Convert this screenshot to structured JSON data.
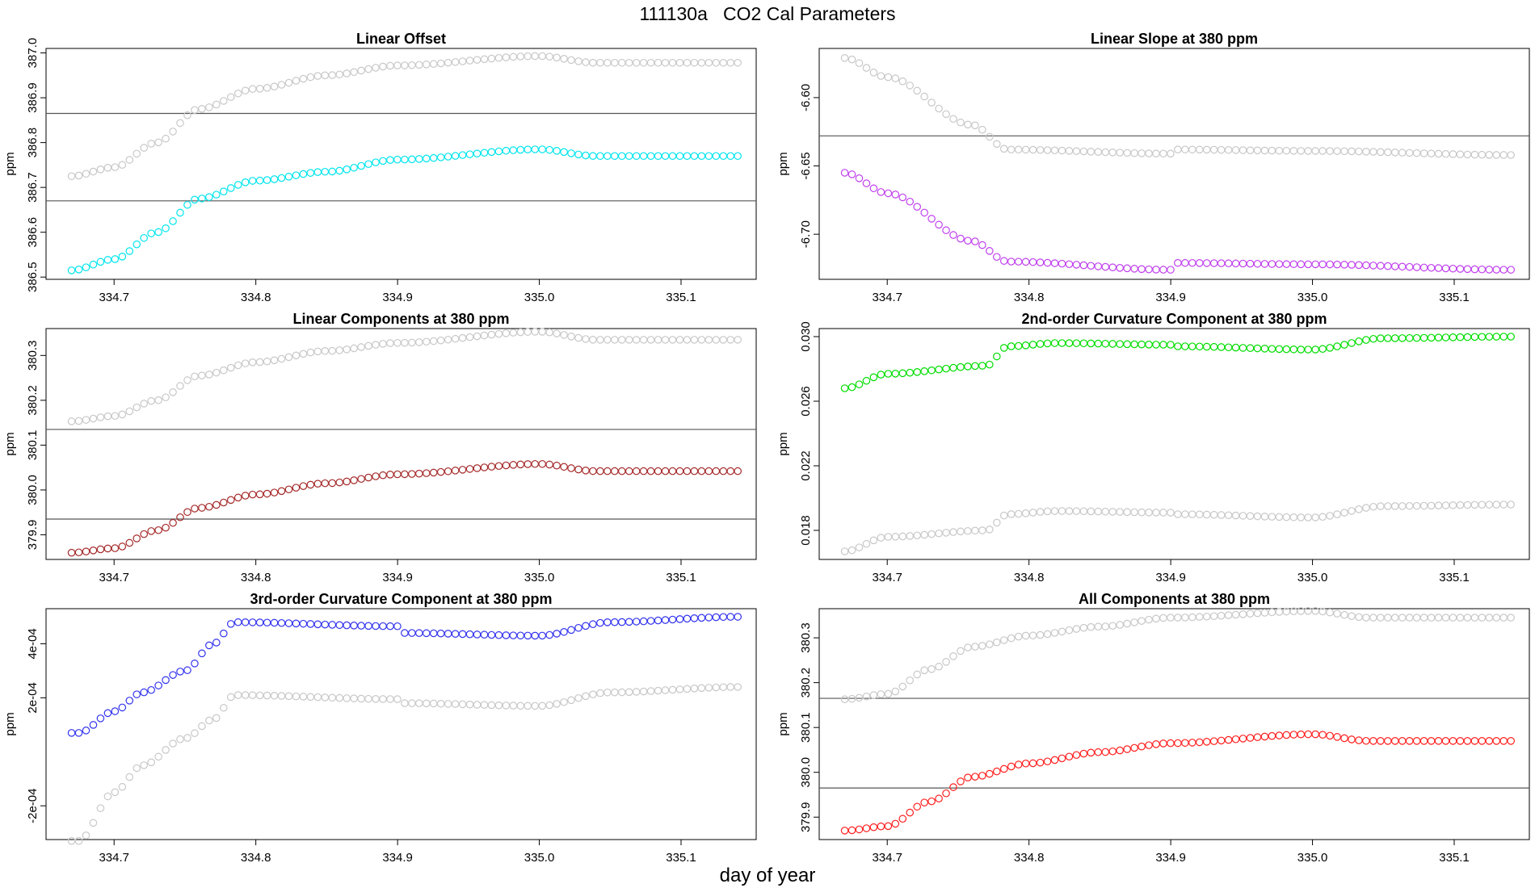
{
  "page": {
    "title": "111130a   CO2 Cal Parameters",
    "xlabel": "day of year"
  },
  "colors": {
    "gray": "#c8c8c8",
    "frame": "#000000",
    "hline": "#555555"
  },
  "chart_data": [
    {
      "type": "scatter",
      "title": "Linear Offset",
      "ylabel": "ppm",
      "xlim": [
        334.652,
        335.153
      ],
      "ylim": [
        386.495,
        387.01
      ],
      "xticks": [
        334.7,
        334.8,
        334.9,
        335.0,
        335.1
      ],
      "xtick_labels": [
        "334.7",
        "334.8",
        "334.9",
        "335.0",
        "335.1"
      ],
      "yticks": [
        386.5,
        386.6,
        386.7,
        386.8,
        386.9,
        387.0
      ],
      "ytick_labels": [
        "386.5",
        "386.6",
        "386.7",
        "386.8",
        "386.9",
        "387.0"
      ],
      "hlines": [
        386.67,
        386.865
      ],
      "x_range": [
        334.67,
        335.14
      ],
      "n_points": 93,
      "series": [
        {
          "name": "gray",
          "color": "#c8c8c8",
          "knots": [
            [
              334.67,
              386.725
            ],
            [
              334.7,
              386.745
            ],
            [
              334.73,
              386.8
            ],
            [
              334.76,
              386.875
            ],
            [
              334.8,
              386.92
            ],
            [
              334.85,
              386.95
            ],
            [
              334.9,
              386.972
            ],
            [
              335.0,
              386.993
            ],
            [
              335.04,
              386.978
            ],
            [
              335.14,
              386.978
            ]
          ]
        },
        {
          "name": "main",
          "color": "#00e5ee",
          "knots": [
            [
              334.67,
              386.515
            ],
            [
              334.7,
              386.54
            ],
            [
              334.73,
              386.6
            ],
            [
              334.76,
              386.675
            ],
            [
              334.8,
              386.715
            ],
            [
              334.85,
              386.735
            ],
            [
              334.9,
              386.762
            ],
            [
              335.0,
              386.785
            ],
            [
              335.04,
              386.77
            ],
            [
              335.14,
              386.77
            ]
          ]
        }
      ]
    },
    {
      "type": "scatter",
      "title": "Linear Slope at 380 ppm",
      "ylabel": "ppm",
      "xlim": [
        334.652,
        335.153
      ],
      "ylim": [
        -6.733,
        -6.564
      ],
      "xticks": [
        334.7,
        334.8,
        334.9,
        335.0,
        335.1
      ],
      "xtick_labels": [
        "334.7",
        "334.8",
        "334.9",
        "335.0",
        "335.1"
      ],
      "yticks": [
        -6.6,
        -6.65,
        -6.7
      ],
      "ytick_labels": [
        "-6.60",
        "-6.65",
        "-6.70"
      ],
      "hlines": [
        -6.628
      ],
      "x_range": [
        334.67,
        335.14
      ],
      "n_points": 93,
      "series": [
        {
          "name": "gray",
          "color": "#c8c8c8",
          "knots": [
            [
              334.67,
              -6.571
            ],
            [
              334.7,
              -6.585
            ],
            [
              334.76,
              -6.62
            ],
            [
              334.785,
              -6.638
            ],
            [
              334.9,
              -6.641
            ],
            [
              334.905,
              -6.638
            ],
            [
              335.0,
              -6.639
            ],
            [
              335.14,
              -6.642
            ]
          ]
        },
        {
          "name": "main",
          "color": "#c040ee",
          "knots": [
            [
              334.67,
              -6.655
            ],
            [
              334.7,
              -6.67
            ],
            [
              334.76,
              -6.705
            ],
            [
              334.785,
              -6.72
            ],
            [
              334.9,
              -6.726
            ],
            [
              334.905,
              -6.721
            ],
            [
              335.0,
              -6.722
            ],
            [
              335.14,
              -6.726
            ]
          ]
        }
      ]
    },
    {
      "type": "scatter",
      "title": "Linear Components at 380 ppm",
      "ylabel": "ppm",
      "xlim": [
        334.652,
        335.153
      ],
      "ylim": [
        379.845,
        380.36
      ],
      "xticks": [
        334.7,
        334.8,
        334.9,
        335.0,
        335.1
      ],
      "xtick_labels": [
        "334.7",
        "334.8",
        "334.9",
        "335.0",
        "335.1"
      ],
      "yticks": [
        379.9,
        380.0,
        380.1,
        380.2,
        380.3
      ],
      "ytick_labels": [
        "379.9",
        "380.0",
        "380.1",
        "380.2",
        "380.3"
      ],
      "hlines": [
        379.935,
        380.135
      ],
      "x_range": [
        334.67,
        335.14
      ],
      "n_points": 93,
      "series": [
        {
          "name": "gray",
          "color": "#c8c8c8",
          "knots": [
            [
              334.67,
              380.153
            ],
            [
              334.7,
              380.165
            ],
            [
              334.73,
              380.2
            ],
            [
              334.76,
              380.255
            ],
            [
              334.8,
              380.285
            ],
            [
              334.85,
              380.31
            ],
            [
              334.9,
              380.328
            ],
            [
              335.0,
              380.353
            ],
            [
              335.04,
              380.335
            ],
            [
              335.14,
              380.335
            ]
          ]
        },
        {
          "name": "main",
          "color": "#a52a2a",
          "knots": [
            [
              334.67,
              379.86
            ],
            [
              334.7,
              379.87
            ],
            [
              334.73,
              379.91
            ],
            [
              334.76,
              379.96
            ],
            [
              334.8,
              379.99
            ],
            [
              334.85,
              380.015
            ],
            [
              334.9,
              380.035
            ],
            [
              335.0,
              380.058
            ],
            [
              335.04,
              380.042
            ],
            [
              335.14,
              380.042
            ]
          ]
        }
      ]
    },
    {
      "type": "scatter",
      "title": "2nd-order Curvature Component at 380 ppm",
      "ylabel": "ppm",
      "xlim": [
        334.652,
        335.153
      ],
      "ylim": [
        0.0162,
        0.0305
      ],
      "xticks": [
        334.7,
        334.8,
        334.9,
        335.0,
        335.1
      ],
      "xtick_labels": [
        "334.7",
        "334.8",
        "334.9",
        "335.0",
        "335.1"
      ],
      "yticks": [
        0.018,
        0.022,
        0.026,
        0.03
      ],
      "ytick_labels": [
        "0.018",
        "0.022",
        "0.026",
        "0.030"
      ],
      "hlines": [],
      "x_range": [
        334.67,
        335.14
      ],
      "n_points": 93,
      "series": [
        {
          "name": "gray",
          "color": "#c8c8c8",
          "knots": [
            [
              334.67,
              0.0167
            ],
            [
              334.7,
              0.0176
            ],
            [
              334.77,
              0.018
            ],
            [
              334.785,
              0.019
            ],
            [
              334.82,
              0.0192
            ],
            [
              334.9,
              0.0191
            ],
            [
              334.905,
              0.019
            ],
            [
              335.0,
              0.0188
            ],
            [
              335.05,
              0.0195
            ],
            [
              335.14,
              0.0196
            ]
          ]
        },
        {
          "name": "main",
          "color": "#00dd00",
          "knots": [
            [
              334.67,
              0.0268
            ],
            [
              334.7,
              0.0277
            ],
            [
              334.77,
              0.0282
            ],
            [
              334.785,
              0.0294
            ],
            [
              334.82,
              0.0296
            ],
            [
              334.9,
              0.0295
            ],
            [
              334.905,
              0.0294
            ],
            [
              335.0,
              0.0292
            ],
            [
              335.05,
              0.0299
            ],
            [
              335.14,
              0.03
            ]
          ]
        }
      ]
    },
    {
      "type": "scatter",
      "title": "3rd-order Curvature Component at 380 ppm",
      "ylabel": "ppm",
      "xlim": [
        334.652,
        335.153
      ],
      "ylim": [
        -0.000325,
        0.00053
      ],
      "xticks": [
        334.7,
        334.8,
        334.9,
        335.0,
        335.1
      ],
      "xtick_labels": [
        "334.7",
        "334.8",
        "334.9",
        "335.0",
        "335.1"
      ],
      "yticks": [
        -0.0002,
        0.0002,
        0.0004
      ],
      "ytick_labels": [
        "-2e-04",
        "2e-04",
        "4e-04"
      ],
      "hlines": [],
      "x_range": [
        334.67,
        335.14
      ],
      "n_points": 93,
      "series": [
        {
          "name": "gray",
          "color": "#c8c8c8",
          "knots": [
            [
              334.67,
              -0.00033
            ],
            [
              334.675,
              -0.00033
            ],
            [
              334.7,
              -0.00015
            ],
            [
              334.72,
              -5e-05
            ],
            [
              334.75,
              5e-05
            ],
            [
              334.77,
              0.00012
            ],
            [
              334.785,
              0.00021
            ],
            [
              334.9,
              0.000195
            ],
            [
              334.905,
              0.00018
            ],
            [
              335.0,
              0.00017
            ],
            [
              335.05,
              0.00022
            ],
            [
              335.14,
              0.00024
            ]
          ]
        },
        {
          "name": "main",
          "color": "#3333ee",
          "knots": [
            [
              334.67,
              7e-05
            ],
            [
              334.675,
              7e-05
            ],
            [
              334.7,
              0.00015
            ],
            [
              334.72,
              0.00022
            ],
            [
              334.75,
              0.0003
            ],
            [
              334.77,
              0.0004
            ],
            [
              334.785,
              0.00048
            ],
            [
              334.9,
              0.000465
            ],
            [
              334.905,
              0.00044
            ],
            [
              335.0,
              0.00043
            ],
            [
              335.05,
              0.00048
            ],
            [
              335.14,
              0.0005
            ]
          ]
        }
      ]
    },
    {
      "type": "scatter",
      "title": "All Components at 380 ppm",
      "ylabel": "ppm",
      "xlim": [
        334.652,
        335.153
      ],
      "ylim": [
        379.85,
        380.365
      ],
      "xticks": [
        334.7,
        334.8,
        334.9,
        335.0,
        335.1
      ],
      "xtick_labels": [
        "334.7",
        "334.8",
        "334.9",
        "335.0",
        "335.1"
      ],
      "yticks": [
        379.9,
        380.0,
        380.1,
        380.2,
        380.3
      ],
      "ytick_labels": [
        "379.9",
        "380.0",
        "380.1",
        "380.2",
        "380.3"
      ],
      "hlines": [
        379.965,
        380.165
      ],
      "x_range": [
        334.67,
        335.14
      ],
      "n_points": 93,
      "series": [
        {
          "name": "gray",
          "color": "#c8c8c8",
          "knots": [
            [
              334.67,
              380.163
            ],
            [
              334.7,
              380.175
            ],
            [
              334.73,
              380.23
            ],
            [
              334.76,
              380.28
            ],
            [
              334.8,
              380.305
            ],
            [
              334.85,
              380.325
            ],
            [
              334.9,
              380.345
            ],
            [
              335.0,
              380.36
            ],
            [
              335.04,
              380.345
            ],
            [
              335.14,
              380.345
            ]
          ]
        },
        {
          "name": "main",
          "color": "#ff2020",
          "knots": [
            [
              334.67,
              379.87
            ],
            [
              334.7,
              379.88
            ],
            [
              334.73,
              379.935
            ],
            [
              334.76,
              379.99
            ],
            [
              334.8,
              380.02
            ],
            [
              334.85,
              380.045
            ],
            [
              334.9,
              380.065
            ],
            [
              335.0,
              380.085
            ],
            [
              335.04,
              380.07
            ],
            [
              335.14,
              380.07
            ]
          ]
        }
      ]
    }
  ]
}
